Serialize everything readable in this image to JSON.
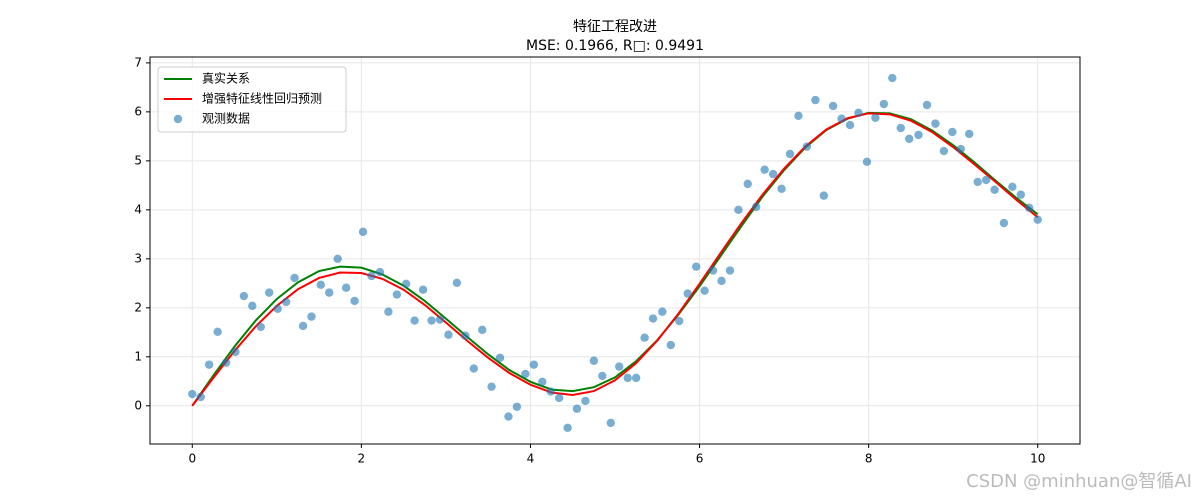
{
  "chart_data": {
    "type": "line",
    "title": "特征工程改进",
    "subtitle": "MSE: 0.1966, R□: 0.9491",
    "xlim": [
      -0.5,
      10.5
    ],
    "ylim": [
      -0.78,
      7.12
    ],
    "xticks": [
      0,
      2,
      4,
      6,
      8,
      10
    ],
    "yticks": [
      0,
      1,
      2,
      3,
      4,
      5,
      6,
      7
    ],
    "grid": true,
    "legend": "upper left",
    "series": [
      {
        "name": "真实关系",
        "color": "#008000",
        "type": "line",
        "x": [
          0,
          0.25,
          0.5,
          0.75,
          1,
          1.25,
          1.5,
          1.75,
          2,
          2.25,
          2.5,
          2.75,
          3,
          3.25,
          3.5,
          3.75,
          4,
          4.25,
          4.5,
          4.75,
          5,
          5.25,
          5.5,
          5.75,
          6,
          6.25,
          6.5,
          6.75,
          7,
          7.25,
          7.5,
          7.75,
          8,
          8.25,
          8.5,
          8.75,
          9,
          9.25,
          9.5,
          9.75,
          10
        ],
        "values": [
          0,
          0.62,
          1.21,
          1.74,
          2.18,
          2.52,
          2.75,
          2.84,
          2.82,
          2.68,
          2.45,
          2.14,
          1.78,
          1.41,
          1.05,
          0.73,
          0.49,
          0.33,
          0.3,
          0.38,
          0.58,
          0.91,
          1.34,
          1.86,
          2.44,
          3.06,
          3.68,
          4.28,
          4.81,
          5.27,
          5.63,
          5.86,
          5.98,
          5.97,
          5.85,
          5.62,
          5.32,
          4.97,
          4.6,
          4.24,
          3.91
        ]
      },
      {
        "name": "增强特征线性回归预测",
        "color": "#ff0000",
        "type": "line",
        "x": [
          0,
          0.25,
          0.5,
          0.75,
          1,
          1.25,
          1.5,
          1.75,
          2,
          2.25,
          2.5,
          2.75,
          3,
          3.25,
          3.5,
          3.75,
          4,
          4.25,
          4.5,
          4.75,
          5,
          5.25,
          5.5,
          5.75,
          6,
          6.25,
          6.5,
          6.75,
          7,
          7.25,
          7.5,
          7.75,
          8,
          8.25,
          8.5,
          8.75,
          9,
          9.25,
          9.5,
          9.75,
          10
        ],
        "values": [
          0,
          0.57,
          1.12,
          1.62,
          2.04,
          2.38,
          2.61,
          2.72,
          2.71,
          2.59,
          2.37,
          2.06,
          1.7,
          1.33,
          0.98,
          0.67,
          0.43,
          0.27,
          0.22,
          0.3,
          0.52,
          0.87,
          1.33,
          1.88,
          2.49,
          3.12,
          3.74,
          4.32,
          4.84,
          5.29,
          5.64,
          5.87,
          5.97,
          5.95,
          5.82,
          5.59,
          5.28,
          4.93,
          4.57,
          4.2,
          3.85
        ]
      },
      {
        "name": "观测数据",
        "color": "#1f77b4",
        "type": "scatter",
        "x": [
          0,
          0.1,
          0.2,
          0.3,
          0.4,
          0.51,
          0.61,
          0.71,
          0.81,
          0.91,
          1.01,
          1.11,
          1.21,
          1.31,
          1.41,
          1.52,
          1.62,
          1.72,
          1.82,
          1.92,
          2.02,
          2.12,
          2.22,
          2.32,
          2.42,
          2.53,
          2.63,
          2.73,
          2.83,
          2.93,
          3.03,
          3.13,
          3.23,
          3.33,
          3.43,
          3.54,
          3.64,
          3.74,
          3.84,
          3.94,
          4.04,
          4.14,
          4.24,
          4.34,
          4.44,
          4.55,
          4.65,
          4.75,
          4.85,
          4.95,
          5.05,
          5.15,
          5.25,
          5.35,
          5.45,
          5.56,
          5.66,
          5.76,
          5.86,
          5.96,
          6.06,
          6.16,
          6.26,
          6.36,
          6.46,
          6.57,
          6.67,
          6.77,
          6.87,
          6.97,
          7.07,
          7.17,
          7.27,
          7.37,
          7.47,
          7.58,
          7.68,
          7.78,
          7.88,
          7.98,
          8.08,
          8.18,
          8.28,
          8.38,
          8.48,
          8.59,
          8.69,
          8.79,
          8.89,
          8.99,
          9.09,
          9.19,
          9.29,
          9.39,
          9.49,
          9.6,
          9.7,
          9.8,
          9.9,
          10
        ],
        "values": [
          0.24,
          0.18,
          0.84,
          1.51,
          0.88,
          1.1,
          2.24,
          2.04,
          1.61,
          2.31,
          1.98,
          2.12,
          2.61,
          1.63,
          1.82,
          2.47,
          2.31,
          3,
          2.41,
          2.14,
          3.55,
          2.65,
          2.73,
          1.92,
          2.27,
          2.49,
          1.74,
          2.37,
          1.74,
          1.76,
          1.45,
          2.51,
          1.43,
          0.76,
          1.55,
          0.39,
          0.98,
          -0.22,
          -0.02,
          0.65,
          0.84,
          0.49,
          0.29,
          0.16,
          -0.45,
          -0.06,
          0.1,
          0.92,
          0.61,
          -0.35,
          0.8,
          0.57,
          0.57,
          1.39,
          1.78,
          1.92,
          1.24,
          1.73,
          2.29,
          2.84,
          2.35,
          2.76,
          2.55,
          2.76,
          4,
          4.53,
          4.06,
          4.82,
          4.73,
          4.43,
          5.14,
          5.92,
          5.29,
          6.24,
          4.29,
          6.12,
          5.86,
          5.73,
          5.98,
          4.98,
          5.88,
          6.16,
          6.69,
          5.67,
          5.45,
          5.53,
          6.14,
          5.76,
          5.2,
          5.59,
          5.24,
          5.55,
          4.57,
          4.61,
          4.41,
          3.73,
          4.47,
          4.31,
          4.04,
          3.8
        ]
      }
    ]
  },
  "watermark": "CSDN @minhuan@智循AI"
}
